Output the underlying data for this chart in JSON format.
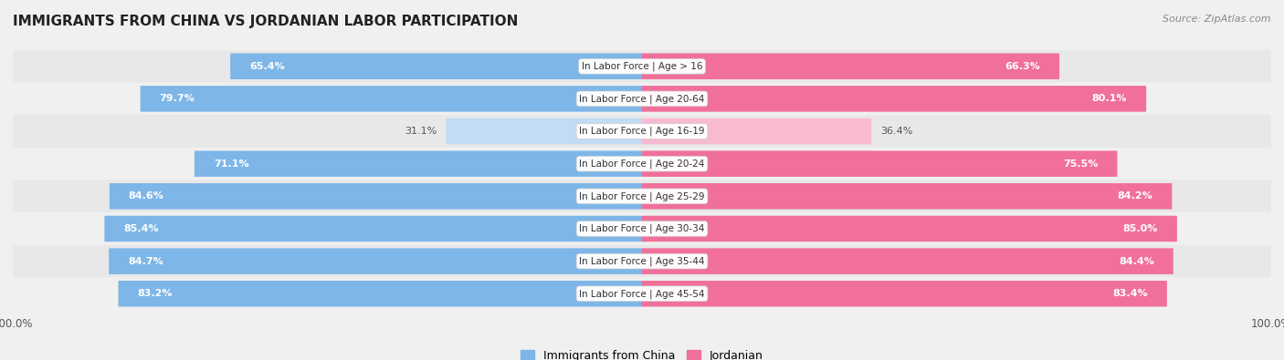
{
  "title": "IMMIGRANTS FROM CHINA VS JORDANIAN LABOR PARTICIPATION",
  "source": "Source: ZipAtlas.com",
  "categories": [
    "In Labor Force | Age > 16",
    "In Labor Force | Age 20-64",
    "In Labor Force | Age 16-19",
    "In Labor Force | Age 20-24",
    "In Labor Force | Age 25-29",
    "In Labor Force | Age 30-34",
    "In Labor Force | Age 35-44",
    "In Labor Force | Age 45-54"
  ],
  "china_values": [
    65.4,
    79.7,
    31.1,
    71.1,
    84.6,
    85.4,
    84.7,
    83.2
  ],
  "jordan_values": [
    66.3,
    80.1,
    36.4,
    75.5,
    84.2,
    85.0,
    84.4,
    83.4
  ],
  "china_color": "#7EB6E8",
  "china_color_light": "#C2DCF5",
  "jordan_color": "#F0709A",
  "jordan_color_light": "#F8BAD0",
  "background_color": "#F0F0F0",
  "row_bg_even": "#E8E8E8",
  "row_bg_odd": "#F0F0F0",
  "label_color": "#444444",
  "title_color": "#222222",
  "legend_china": "Immigrants from China",
  "legend_jordan": "Jordanian",
  "max_value": 100.0
}
